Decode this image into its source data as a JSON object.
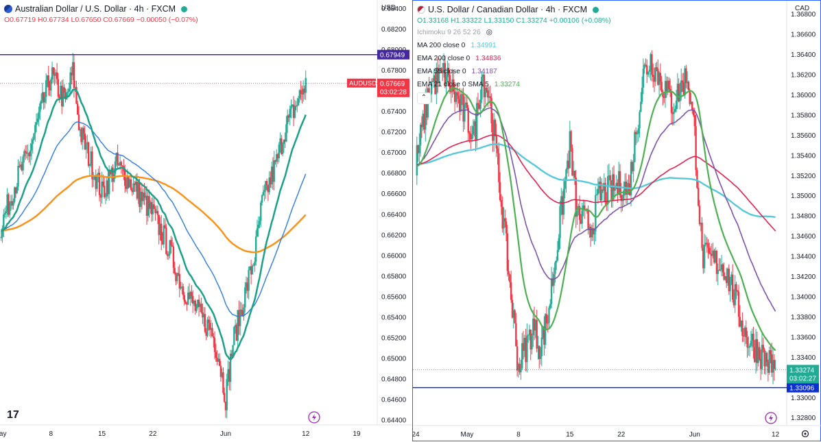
{
  "colors": {
    "up": "#22ab94",
    "down": "#f23645",
    "ma200": "#55c8d8",
    "ema200": "#e0204f",
    "ema55": "#7b52ab",
    "ema21": "#4caf50",
    "hline": "#4527a0",
    "hline_right": "#0c2fcf",
    "ema_blue": "#2a7bde",
    "ema_orange": "#f7931a",
    "ema_teal": "#1aa088"
  },
  "left": {
    "title": "Australian Dollar / U.S. Dollar · 4h · FXCM",
    "ohlc": {
      "o": "O0.67719",
      "h": "H0.67734",
      "l": "L0.67650",
      "c": "C0.67669",
      "chg": "−0.00050 (−0.07%)"
    },
    "currency": "USD",
    "symbol_tag": "AUDUSD",
    "price_tag": "0.67669",
    "countdown": "03:02:28",
    "hline_tag": "0.67949",
    "yticks": [
      "0.68400",
      "0.68200",
      "0.68000",
      "0.67800",
      "0.67600",
      "0.67400",
      "0.67200",
      "0.67000",
      "0.66800",
      "0.66600",
      "0.66400",
      "0.66200",
      "0.66000",
      "0.65800",
      "0.65600",
      "0.65400",
      "0.65200",
      "0.65000",
      "0.64800",
      "0.64600",
      "0.64400"
    ],
    "xticks": [
      "May",
      "8",
      "15",
      "22",
      "Jun",
      "12",
      "19"
    ],
    "logo": "17"
  },
  "right": {
    "title": "U.S. Dollar / Canadian Dollar · 4h · FXCM",
    "ohlc": {
      "o": "O1.33168",
      "h": "H1.33322",
      "l": "L1.33150",
      "c": "C1.33274",
      "chg": "+0.00106 (+0.08%)"
    },
    "currency": "CAD",
    "indicators": [
      {
        "label": "Ichimoku 9 26 52 26",
        "value": ""
      },
      {
        "label": "MA 200 close 0",
        "value": "1.34991"
      },
      {
        "label": "EMA 200 close 0",
        "value": "1.34836"
      },
      {
        "label": "EMA 55 close 0",
        "value": "1.34187"
      },
      {
        "label": "EMA 21 close 0 SMA 5",
        "value": "1.33274"
      }
    ],
    "price_tag": "1.33274",
    "countdown": "03:02:27",
    "hline_tag": "1.33096",
    "yticks": [
      "1.36800",
      "1.36600",
      "1.36400",
      "1.36200",
      "1.36000",
      "1.35800",
      "1.35600",
      "1.35400",
      "1.35200",
      "1.35000",
      "1.34800",
      "1.34600",
      "1.34400",
      "1.34200",
      "1.34000",
      "1.33800",
      "1.33600",
      "1.33400",
      "1.33200",
      "1.33000",
      "1.32800"
    ],
    "xticks": [
      "24",
      "May",
      "8",
      "15",
      "22",
      "Jun",
      "12"
    ]
  },
  "chart_data": [
    {
      "type": "candlestick",
      "title": "Australian Dollar / U.S. Dollar · 4h · FXCM",
      "ylim": [
        0.6435,
        0.6848
      ],
      "x_range": [
        "May 1",
        "Jun 19"
      ],
      "horizontal_line": 0.67949,
      "last_price": 0.67669,
      "close_path": [
        [
          "May 1",
          0.6625
        ],
        [
          "May 3",
          0.6668
        ],
        [
          "May 5",
          0.67
        ],
        [
          "May 8",
          0.6775
        ],
        [
          "May 10",
          0.6748
        ],
        [
          "May 11",
          0.6778
        ],
        [
          "May 12",
          0.672
        ],
        [
          "May 15",
          0.666
        ],
        [
          "May 17",
          0.6688
        ],
        [
          "May 19",
          0.667
        ],
        [
          "May 22",
          0.664
        ],
        [
          "May 24",
          0.661
        ],
        [
          "May 26",
          0.657
        ],
        [
          "May 29",
          0.6535
        ],
        [
          "May 30",
          0.6528
        ],
        [
          "May 31",
          0.6503
        ],
        [
          "Jun 1",
          0.6462
        ],
        [
          "Jun 2",
          0.6515
        ],
        [
          "Jun 5",
          0.66
        ],
        [
          "Jun 6",
          0.665
        ],
        [
          "Jun 8",
          0.669
        ],
        [
          "Jun 9",
          0.672
        ],
        [
          "Jun 12",
          0.6767
        ]
      ],
      "moving_averages_end": {
        "orange": 0.6645,
        "blue": 0.6657,
        "teal": 0.671
      }
    },
    {
      "type": "candlestick",
      "title": "U.S. Dollar / Canadian Dollar · 4h · FXCM",
      "ylim": [
        1.3272,
        1.3693
      ],
      "x_range": [
        "Apr 24",
        "Jun 14"
      ],
      "horizontal_line": 1.33096,
      "last_price": 1.33274,
      "series": [
        {
          "name": "MA 200 close 0",
          "value": 1.34991
        },
        {
          "name": "EMA 200 close 0",
          "value": 1.34836
        },
        {
          "name": "EMA 55 close 0",
          "value": 1.34187
        },
        {
          "name": "EMA 21 close 0 SMA 5",
          "value": 1.33274
        }
      ],
      "close_path": [
        [
          "Apr 24",
          1.353
        ],
        [
          "Apr 26",
          1.361
        ],
        [
          "Apr 28",
          1.362
        ],
        [
          "May 2",
          1.356
        ],
        [
          "May 3",
          1.362
        ],
        [
          "May 4",
          1.36
        ],
        [
          "May 5",
          1.354
        ],
        [
          "May 8",
          1.333
        ],
        [
          "May 10",
          1.337
        ],
        [
          "May 11",
          1.335
        ],
        [
          "May 12",
          1.338
        ],
        [
          "May 15",
          1.355
        ],
        [
          "May 16",
          1.348
        ],
        [
          "May 18",
          1.347
        ],
        [
          "May 19",
          1.35
        ],
        [
          "May 22",
          1.351
        ],
        [
          "May 23",
          1.3505
        ],
        [
          "May 25",
          1.362
        ],
        [
          "May 26",
          1.3635
        ],
        [
          "May 29",
          1.359
        ],
        [
          "May 31",
          1.362
        ],
        [
          "Jun 1",
          1.356
        ],
        [
          "Jun 2",
          1.344
        ],
        [
          "Jun 5",
          1.343
        ],
        [
          "Jun 6",
          1.341
        ],
        [
          "Jun 8",
          1.336
        ],
        [
          "Jun 12",
          1.3327
        ]
      ]
    }
  ]
}
